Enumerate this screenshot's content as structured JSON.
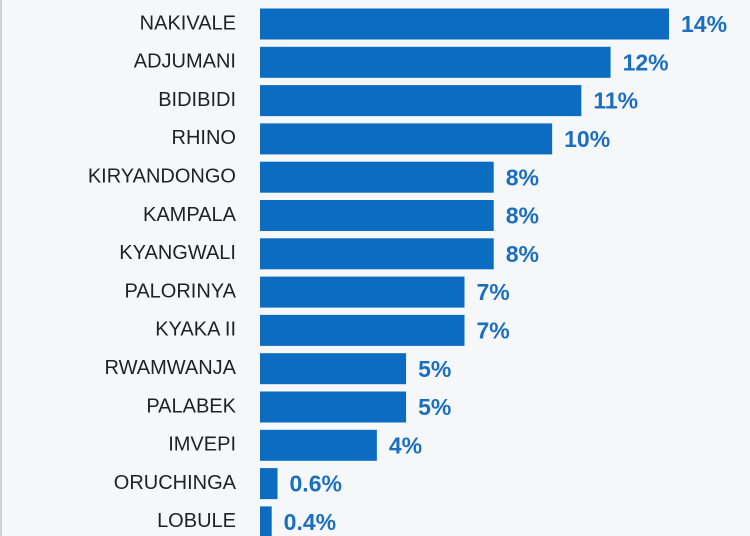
{
  "chart_data": {
    "type": "bar",
    "orientation": "horizontal",
    "categories": [
      "NAKIVALE",
      "ADJUMANI",
      "BIDIBIDI",
      "RHINO",
      "KIRYANDONGO",
      "KAMPALA",
      "KYANGWALI",
      "PALORINYA",
      "KYAKA II",
      "RWAMWANJA",
      "PALABEK",
      "IMVEPI",
      "ORUCHINGA",
      "LOBULE"
    ],
    "values": [
      14,
      12,
      11,
      10,
      8,
      8,
      8,
      7,
      7,
      5,
      5,
      4,
      0.6,
      0.4
    ],
    "value_labels": [
      "14%",
      "12%",
      "11%",
      "10%",
      "8%",
      "8%",
      "8%",
      "7%",
      "7%",
      "5%",
      "5%",
      "4%",
      "0.6%",
      "0.4%"
    ],
    "color": "#0b6cc1"
  }
}
